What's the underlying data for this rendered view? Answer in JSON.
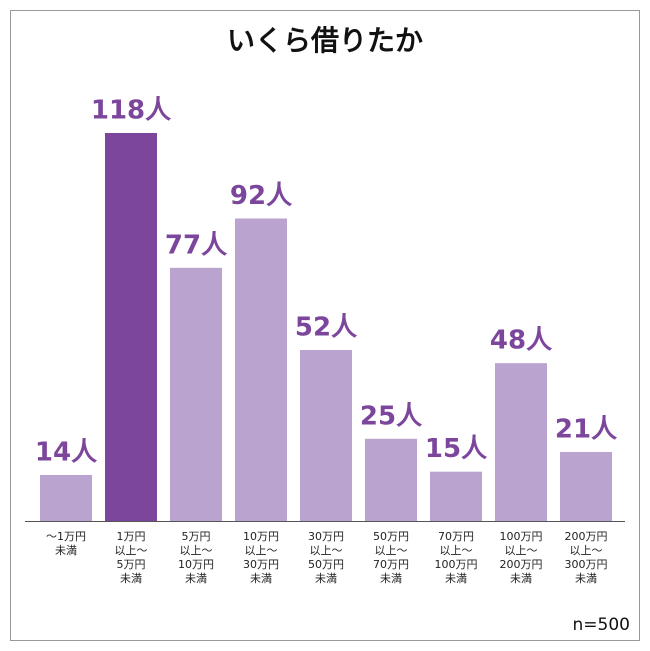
{
  "chart_data": {
    "type": "bar",
    "title": "いくら借りたか",
    "categories": [
      [
        "〜1万円",
        "未満"
      ],
      [
        "1万円",
        "以上〜",
        "5万円",
        "未満"
      ],
      [
        "5万円",
        "以上〜",
        "10万円",
        "未満"
      ],
      [
        "10万円",
        "以上〜",
        "30万円",
        "未満"
      ],
      [
        "30万円",
        "以上〜",
        "50万円",
        "未満"
      ],
      [
        "50万円",
        "以上〜",
        "70万円",
        "未満"
      ],
      [
        "70万円",
        "以上〜",
        "100万円",
        "未満"
      ],
      [
        "100万円",
        "以上〜",
        "200万円",
        "未満"
      ],
      [
        "200万円",
        "以上〜",
        "300万円",
        "未満"
      ]
    ],
    "values": [
      14,
      118,
      77,
      92,
      52,
      25,
      15,
      48,
      21
    ],
    "value_labels": [
      "14人",
      "118人",
      "77人",
      "92人",
      "52人",
      "25人",
      "15人",
      "48人",
      "21人"
    ],
    "colors": [
      "#bba3cf",
      "#7b469b",
      "#bba3cf",
      "#bba3cf",
      "#bba3cf",
      "#bba3cf",
      "#bba3cf",
      "#bba3cf",
      "#bba3cf"
    ],
    "note": "n=500"
  }
}
